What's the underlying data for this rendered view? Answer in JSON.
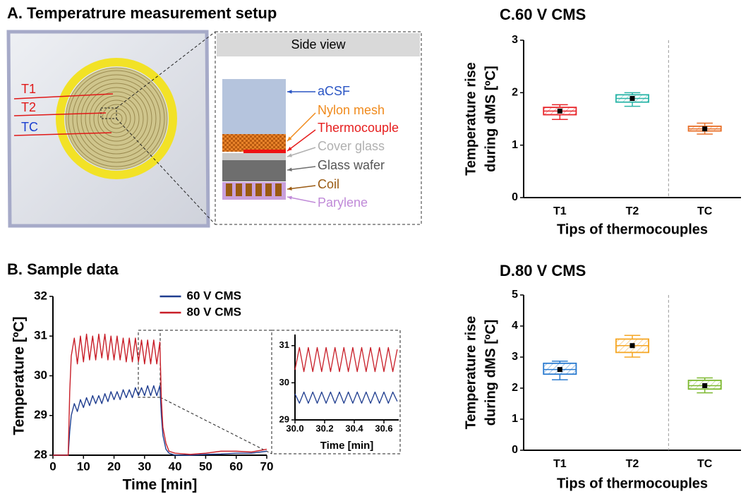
{
  "diagram": {
    "title": "A. Temperatrure measurement setup",
    "probe_labels": [
      "T1",
      "T2",
      "TC"
    ],
    "side_view": {
      "title": "Side view",
      "layers": [
        "aCSF",
        "Nylon mesh",
        "Thermocouple",
        "Cover glass",
        "Glass wafer",
        "Coil",
        "Parylene"
      ]
    }
  },
  "chart_data": [
    {
      "type": "line",
      "title": "B. Sample data",
      "x_label": "Time [min]",
      "y_label": "Temperature [ºC]",
      "x": [
        0,
        5,
        5.5,
        6,
        7,
        8,
        9,
        10,
        11,
        12,
        13,
        14,
        15,
        16,
        17,
        18,
        19,
        20,
        21,
        22,
        23,
        24,
        25,
        26,
        27,
        28,
        29,
        30,
        31,
        32,
        33,
        34,
        35,
        35.5,
        36,
        37,
        38,
        40,
        45,
        50,
        55,
        60,
        65,
        70
      ],
      "series": [
        {
          "name": "60 V CMS",
          "color": "#1f3d8f",
          "values": [
            28,
            28,
            28.6,
            29.0,
            29.3,
            29.1,
            29.4,
            29.2,
            29.45,
            29.25,
            29.5,
            29.3,
            29.5,
            29.3,
            29.55,
            29.35,
            29.6,
            29.4,
            29.6,
            29.4,
            29.65,
            29.45,
            29.65,
            29.45,
            29.7,
            29.5,
            29.7,
            29.5,
            29.75,
            29.5,
            29.75,
            29.5,
            29.75,
            29.0,
            28.5,
            28.15,
            28.05,
            28.0,
            28.0,
            28.02,
            28.03,
            28.05,
            28.05,
            28.1
          ]
        },
        {
          "name": "80 V CMS",
          "color": "#c81e28",
          "values": [
            28,
            28,
            29.6,
            30.5,
            30.95,
            30.3,
            31.0,
            30.35,
            31.05,
            30.4,
            31.0,
            30.4,
            31.05,
            30.45,
            31.05,
            30.4,
            31.0,
            30.4,
            31.0,
            30.4,
            30.95,
            30.35,
            30.95,
            30.35,
            30.95,
            30.35,
            30.9,
            30.3,
            30.9,
            30.3,
            30.9,
            30.3,
            30.85,
            29.4,
            28.7,
            28.3,
            28.1,
            28.05,
            28.02,
            28.05,
            28.1,
            28.1,
            28.08,
            28.15
          ]
        }
      ],
      "xlim": [
        0,
        70
      ],
      "ylim": [
        28,
        32
      ],
      "xticks": [
        0,
        10,
        20,
        30,
        40,
        50,
        60,
        70
      ],
      "yticks": [
        28,
        29,
        30,
        31,
        32
      ],
      "legend": "upper center"
    },
    {
      "type": "line",
      "x_label": "Time [min]",
      "x": [
        30,
        30.03,
        30.06,
        30.09,
        30.12,
        30.15,
        30.18,
        30.21,
        30.24,
        30.27,
        30.3,
        30.33,
        30.36,
        30.39,
        30.42,
        30.45,
        30.48,
        30.51,
        30.54,
        30.57,
        30.6,
        30.63,
        30.66,
        30.69
      ],
      "series": [
        {
          "color": "#1f3d8f",
          "values": [
            29.7,
            29.45,
            29.75,
            29.45,
            29.75,
            29.45,
            29.75,
            29.45,
            29.75,
            29.45,
            29.75,
            29.45,
            29.75,
            29.45,
            29.75,
            29.45,
            29.75,
            29.45,
            29.75,
            29.45,
            29.75,
            29.45,
            29.75,
            29.5
          ]
        },
        {
          "color": "#c81e28",
          "values": [
            30.35,
            30.95,
            30.3,
            30.95,
            30.3,
            30.95,
            30.3,
            30.95,
            30.3,
            30.95,
            30.3,
            30.95,
            30.3,
            30.95,
            30.3,
            30.95,
            30.3,
            30.95,
            30.3,
            30.95,
            30.3,
            30.95,
            30.3,
            30.9
          ]
        }
      ],
      "xlim": [
        30,
        30.7
      ],
      "ylim": [
        29,
        31.3
      ],
      "xticks": [
        {
          "value": 30,
          "label": "30.0"
        },
        30.2,
        30.4,
        30.6
      ],
      "yticks": [
        29,
        30,
        31
      ]
    },
    {
      "type": "box",
      "title": "C.60 V CMS",
      "x_label": "Tips of thermocouples",
      "y_label": [
        "Temperature rise",
        "during dMS [ºC]"
      ],
      "categories": [
        "T1",
        "T2",
        "TC"
      ],
      "boxes": [
        {
          "color": "#e8252a",
          "whisker_low": 1.49,
          "q1": 1.58,
          "median": 1.65,
          "q3": 1.72,
          "whisker_high": 1.77,
          "mean": 1.65
        },
        {
          "color": "#2bb5a8",
          "whisker_low": 1.74,
          "q1": 1.82,
          "median": 1.89,
          "q3": 1.96,
          "whisker_high": 2.0,
          "mean": 1.89
        },
        {
          "color": "#e8702a",
          "whisker_low": 1.21,
          "q1": 1.27,
          "median": 1.31,
          "q3": 1.36,
          "whisker_high": 1.42,
          "mean": 1.31
        }
      ],
      "ylim": [
        0,
        3
      ],
      "yticks": [
        0,
        1,
        2,
        3
      ]
    },
    {
      "type": "box",
      "title": "D.80 V CMS",
      "x_label": "Tips of thermocouples",
      "y_label": [
        "Temperature rise",
        "during dMS [ºC]"
      ],
      "categories": [
        "T1",
        "T2",
        "TC"
      ],
      "boxes": [
        {
          "color": "#2a7bd0",
          "whisker_low": 2.27,
          "q1": 2.45,
          "median": 2.6,
          "q3": 2.8,
          "whisker_high": 2.87,
          "mean": 2.6
        },
        {
          "color": "#f5a623",
          "whisker_low": 3.0,
          "q1": 3.15,
          "median": 3.37,
          "q3": 3.58,
          "whisker_high": 3.7,
          "mean": 3.37
        },
        {
          "color": "#7cb82f",
          "whisker_low": 1.85,
          "q1": 1.97,
          "median": 2.08,
          "q3": 2.25,
          "whisker_high": 2.33,
          "mean": 2.08
        }
      ],
      "ylim": [
        0,
        5
      ],
      "yticks": [
        0,
        1,
        2,
        3,
        4,
        5
      ]
    }
  ]
}
